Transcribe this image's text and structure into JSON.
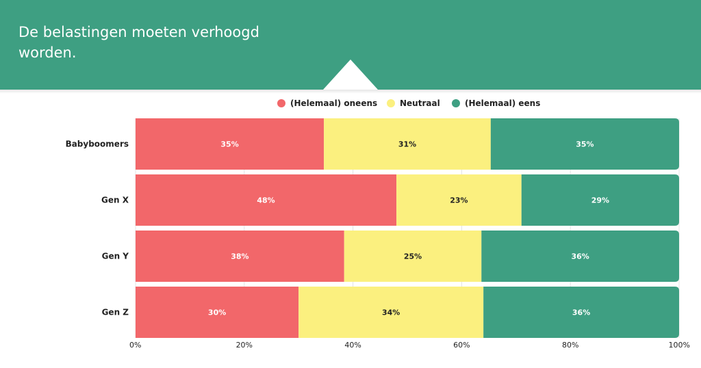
{
  "header": {
    "title": "De belastingen moeten verhoogd worden."
  },
  "chart_data": {
    "type": "bar",
    "orientation": "horizontal",
    "stacked": true,
    "categories": [
      "Babyboomers",
      "Gen X",
      "Gen Y",
      "Gen Z"
    ],
    "series": [
      {
        "name": "(Helemaal) oneens",
        "color": "#f2676a",
        "values": [
          35,
          48,
          38,
          30
        ]
      },
      {
        "name": "Neutraal",
        "color": "#fbf07f",
        "values": [
          31,
          23,
          25,
          34
        ]
      },
      {
        "name": "(Helemaal) eens",
        "color": "#3e9f82",
        "values": [
          35,
          29,
          36,
          36
        ]
      }
    ],
    "label_suffix": "%",
    "xlim": [
      0,
      100
    ],
    "xticks": [
      "0%",
      "20%",
      "40%",
      "60%",
      "80%",
      "100%"
    ],
    "grid": true,
    "legend_position": "top-center"
  }
}
